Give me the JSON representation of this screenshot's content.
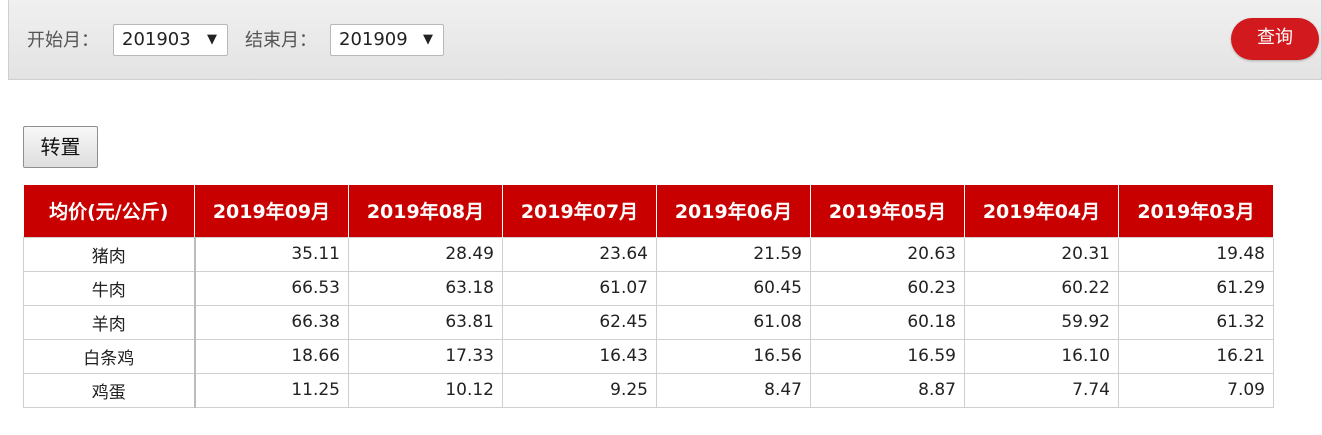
{
  "filters": {
    "start_label": "开始月：",
    "start_value": "201903",
    "end_label": "结束月：",
    "end_value": "201909",
    "query_label": "查询"
  },
  "toolbar": {
    "transpose_label": "转置"
  },
  "table": {
    "headers": [
      "均价(元/公斤)",
      "2019年09月",
      "2019年08月",
      "2019年07月",
      "2019年06月",
      "2019年05月",
      "2019年04月",
      "2019年03月"
    ],
    "rows": [
      {
        "name": "猪肉",
        "values": [
          "35.11",
          "28.49",
          "23.64",
          "21.59",
          "20.63",
          "20.31",
          "19.48"
        ]
      },
      {
        "name": "牛肉",
        "values": [
          "66.53",
          "63.18",
          "61.07",
          "60.45",
          "60.23",
          "60.22",
          "61.29"
        ]
      },
      {
        "name": "羊肉",
        "values": [
          "66.38",
          "63.81",
          "62.45",
          "61.08",
          "60.18",
          "59.92",
          "61.32"
        ]
      },
      {
        "name": "白条鸡",
        "values": [
          "18.66",
          "17.33",
          "16.43",
          "16.56",
          "16.59",
          "16.10",
          "16.21"
        ]
      },
      {
        "name": "鸡蛋",
        "values": [
          "11.25",
          "10.12",
          "9.25",
          "8.47",
          "8.87",
          "7.74",
          "7.09"
        ]
      }
    ]
  },
  "colors": {
    "header_red": "#c80000",
    "button_red": "#d2191e"
  },
  "icons": {
    "dropdown": "caret-down-icon"
  }
}
